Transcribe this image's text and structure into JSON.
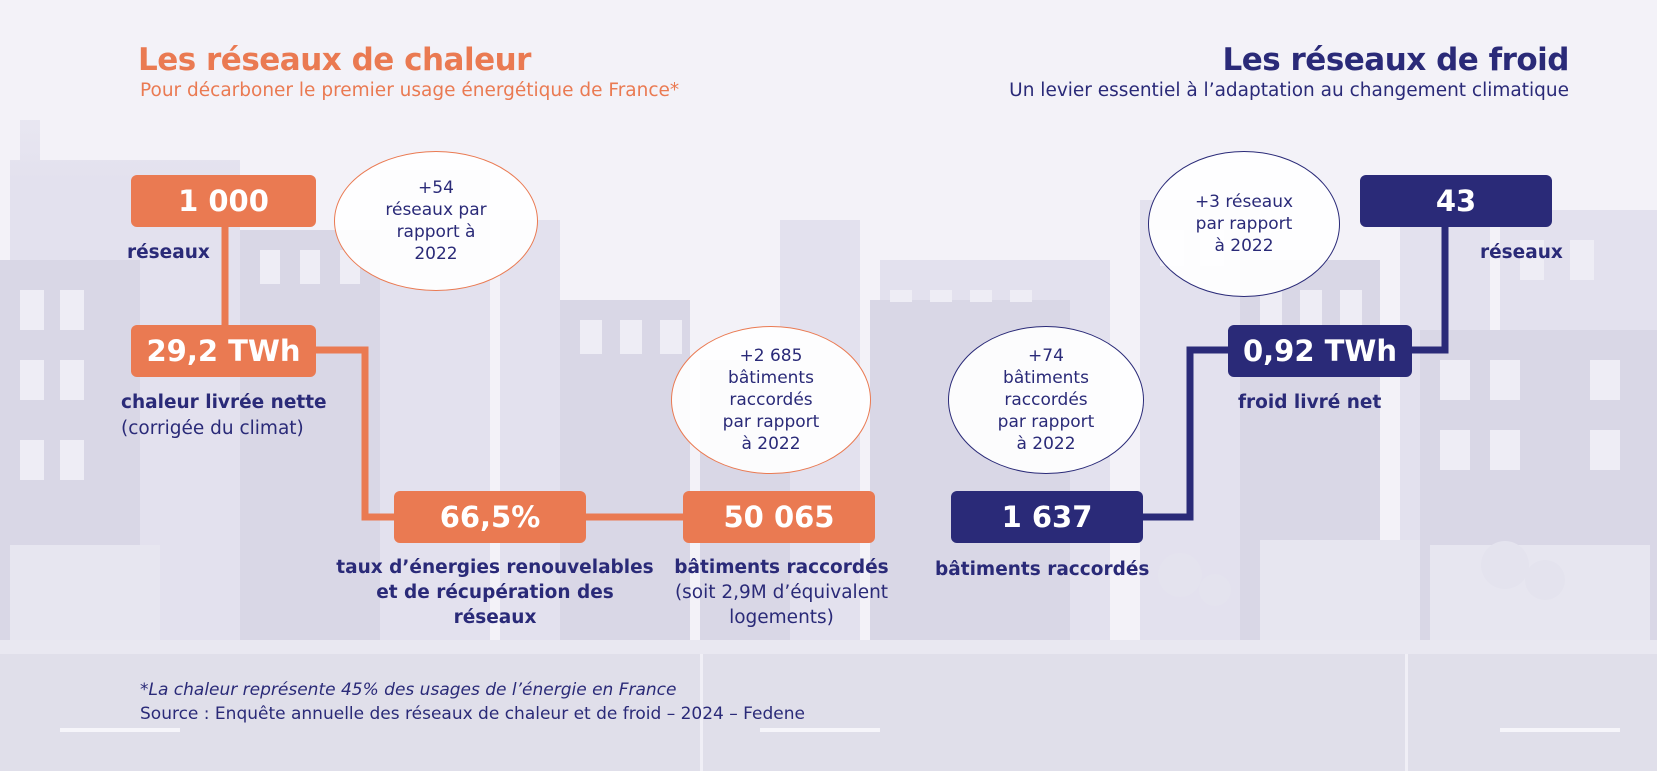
{
  "colors": {
    "heat": "#ea7a52",
    "cold": "#2a2a78",
    "background": "#f3f2f8",
    "buildings": "#d9d7e6"
  },
  "heat": {
    "title": "Les réseaux de chaleur",
    "subtitle": "Pour décarboner le premier usage énergétique de France*",
    "networks": {
      "value": "1 000",
      "label": "réseaux"
    },
    "networks_bubble": [
      "+54",
      "réseaux par",
      "rapport à",
      "2022"
    ],
    "energy": {
      "value": "29,2 TWh",
      "label_bold": "chaleur livrée nette",
      "label_normal": "(corrigée du climat)"
    },
    "renewable": {
      "value": "66,5%",
      "label_lines": [
        "taux d’énergies renouvelables",
        "et de récupération des",
        "réseaux"
      ]
    },
    "buildings": {
      "value": "50 065",
      "label_bold": "bâtiments raccordés",
      "label_lines": [
        "(soit 2,9M d’équivalent",
        "logements)"
      ]
    },
    "buildings_bubble": [
      "+2 685",
      "bâtiments",
      "raccordés",
      "par rapport",
      "à 2022"
    ]
  },
  "cold": {
    "title": "Les réseaux de froid",
    "subtitle": "Un levier essentiel à l’adaptation au changement climatique",
    "networks": {
      "value": "43",
      "label": "réseaux"
    },
    "networks_bubble": [
      "+3 réseaux",
      "par rapport",
      "à 2022"
    ],
    "energy": {
      "value": "0,92 TWh",
      "label": "froid livré net"
    },
    "buildings": {
      "value": "1 637",
      "label": "bâtiments raccordés"
    },
    "buildings_bubble": [
      "+74",
      "bâtiments",
      "raccordés",
      "par rapport",
      "à 2022"
    ]
  },
  "footnote": "*La chaleur représente 45% des usages de l’énergie en France",
  "source": "Source : Enquête annuelle des réseaux de chaleur et de froid – 2024 – Fedene"
}
